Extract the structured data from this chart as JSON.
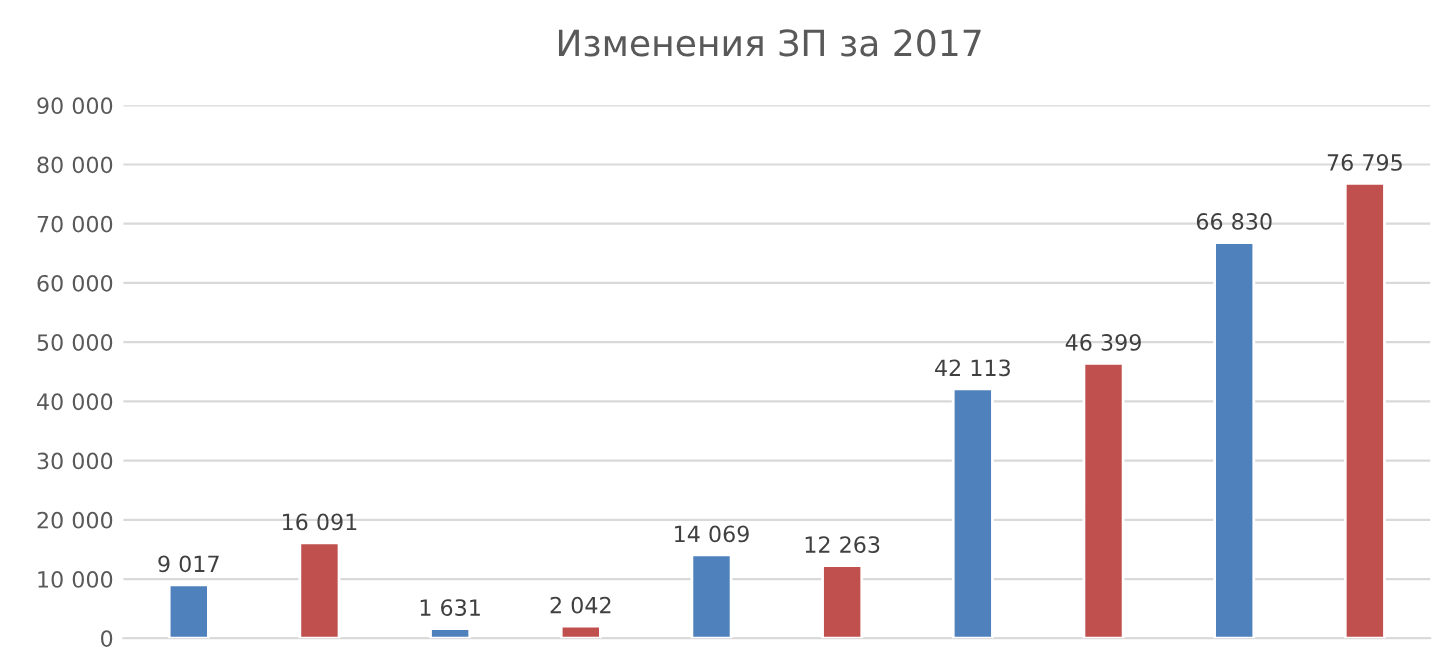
{
  "chart_data": {
    "type": "bar",
    "title": "Изменения ЗП за 2017",
    "categories": [
      null,
      null,
      null,
      null,
      null,
      null,
      null,
      null,
      null,
      null
    ],
    "values": [
      9017,
      16091,
      1631,
      2042,
      14069,
      12263,
      42113,
      46399,
      66830,
      76795
    ],
    "colors": [
      "#4f81bd",
      "#c0504d",
      "#4f81bd",
      "#c0504d",
      "#4f81bd",
      "#c0504d",
      "#4f81bd",
      "#c0504d",
      "#4f81bd",
      "#c0504d"
    ],
    "value_labels": [
      "9 017",
      "16 091",
      "1 631",
      "2 042",
      "14 069",
      "12 263",
      "42 113",
      "46 399",
      "66 830",
      "76 795"
    ],
    "ylim": [
      0,
      90000
    ],
    "yticks": [
      0,
      {
        "value": 10000,
        "label": "10 000"
      },
      {
        "value": 20000,
        "label": "20 000"
      },
      {
        "value": 30000,
        "label": "30 000"
      },
      {
        "value": 40000,
        "label": "40 000"
      },
      {
        "value": 50000,
        "label": "50 000"
      },
      {
        "value": 60000,
        "label": "60 000"
      },
      {
        "value": 70000,
        "label": "70 000"
      },
      {
        "value": 80000,
        "label": "80 000"
      },
      {
        "value": 90000,
        "label": "90 000"
      }
    ],
    "grid": "y"
  }
}
